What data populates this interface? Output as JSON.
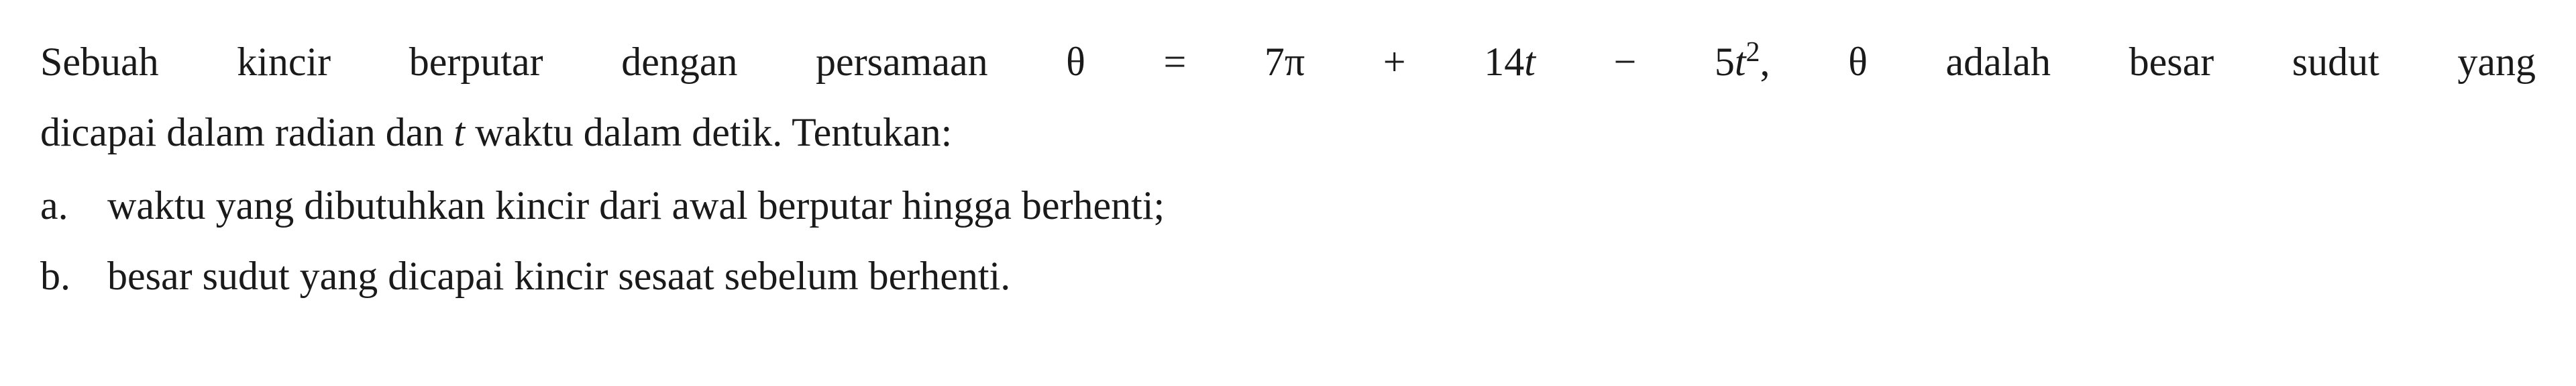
{
  "problem": {
    "intro_part1": "Sebuah kincir berputar dengan persamaan θ = 7π + 14",
    "intro_var_t1": "t",
    "intro_part2": " − 5",
    "intro_var_t2": "t",
    "intro_exp": "2",
    "intro_part3": ", θ adalah besar sudut yang",
    "intro_line2_part1": "dicapai dalam radian dan ",
    "intro_line2_var": "t",
    "intro_line2_part2": " waktu dalam detik. Tentukan:",
    "items": [
      {
        "marker": "a.",
        "text": "waktu yang dibutuhkan kincir dari awal berputar hingga berhenti;"
      },
      {
        "marker": "b.",
        "text": "besar sudut yang dicapai kincir sesaat sebelum berhenti."
      }
    ]
  },
  "style": {
    "font_size": 60,
    "text_color": "#1a1a1a",
    "background_color": "#ffffff",
    "line_height": 1.75
  }
}
